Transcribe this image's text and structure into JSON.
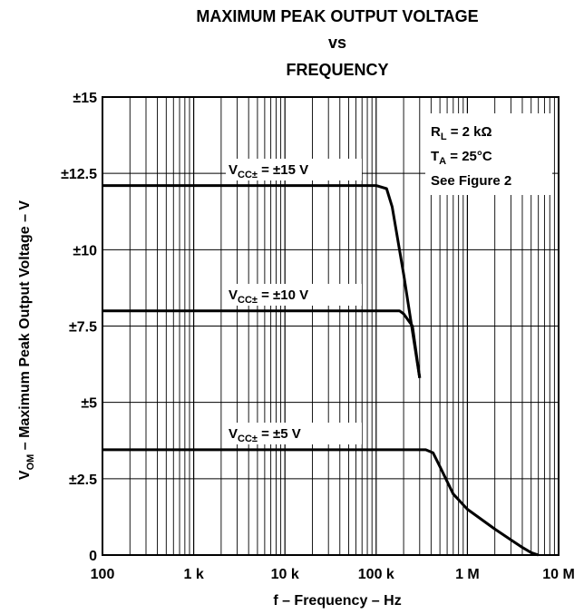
{
  "chart_data": {
    "type": "line",
    "title_lines": [
      "MAXIMUM PEAK OUTPUT VOLTAGE",
      "vs",
      "FREQUENCY"
    ],
    "xlabel": "f – Frequency – Hz",
    "ylabel": {
      "prefix": "V",
      "sub": "OM",
      "rest": " – Maximum Peak Output Voltage – V"
    },
    "x_scale": "log",
    "xlim": [
      100,
      10000000
    ],
    "ylim": [
      0,
      15
    ],
    "x_ticks": [
      {
        "value": 100,
        "label": "100"
      },
      {
        "value": 1000,
        "label": "1 k"
      },
      {
        "value": 10000,
        "label": "10 k"
      },
      {
        "value": 100000,
        "label": "100 k"
      },
      {
        "value": 1000000,
        "label": "1 M"
      },
      {
        "value": 10000000,
        "label": "10 M"
      }
    ],
    "y_ticks": [
      {
        "value": 15,
        "label": "±15"
      },
      {
        "value": 12.5,
        "label": "±12.5"
      },
      {
        "value": 10,
        "label": "±10"
      },
      {
        "value": 7.5,
        "label": "±7.5"
      },
      {
        "value": 5,
        "label": "±5"
      },
      {
        "value": 2.5,
        "label": "±2.5"
      },
      {
        "value": 0,
        "label": "0"
      }
    ],
    "grid": true,
    "series": [
      {
        "name": "VCC± = ±15 V",
        "label_main": "V",
        "label_sub": "CC±",
        "label_rest": " = ±15 V",
        "x": [
          100,
          10000,
          100000,
          130000,
          150000,
          200000,
          300000
        ],
        "y": [
          12.1,
          12.1,
          12.1,
          12.0,
          11.4,
          9.2,
          5.8
        ]
      },
      {
        "name": "VCC± = ±10 V",
        "label_main": "V",
        "label_sub": "CC±",
        "label_rest": " = ±10 V",
        "x": [
          100,
          10000,
          180000,
          200000,
          250000,
          300000
        ],
        "y": [
          8.0,
          8.0,
          8.0,
          7.9,
          7.5,
          5.8
        ]
      },
      {
        "name": "VCC± = ±5 V",
        "label_main": "V",
        "label_sub": "CC±",
        "label_rest": " = ±5 V",
        "x": [
          100,
          10000,
          350000,
          420000,
          500000,
          700000,
          1000000,
          2000000,
          3000000,
          4000000,
          5000000,
          6000000
        ],
        "y": [
          3.45,
          3.45,
          3.45,
          3.35,
          2.9,
          2.0,
          1.5,
          0.85,
          0.5,
          0.25,
          0.08,
          0.0
        ]
      }
    ],
    "conditions": [
      {
        "main": "R",
        "sub": "L",
        "rest": " = 2 kΩ"
      },
      {
        "main": "T",
        "sub": "A",
        "rest": " = 25°C"
      },
      {
        "main": "See Figure 2",
        "sub": "",
        "rest": ""
      }
    ]
  }
}
